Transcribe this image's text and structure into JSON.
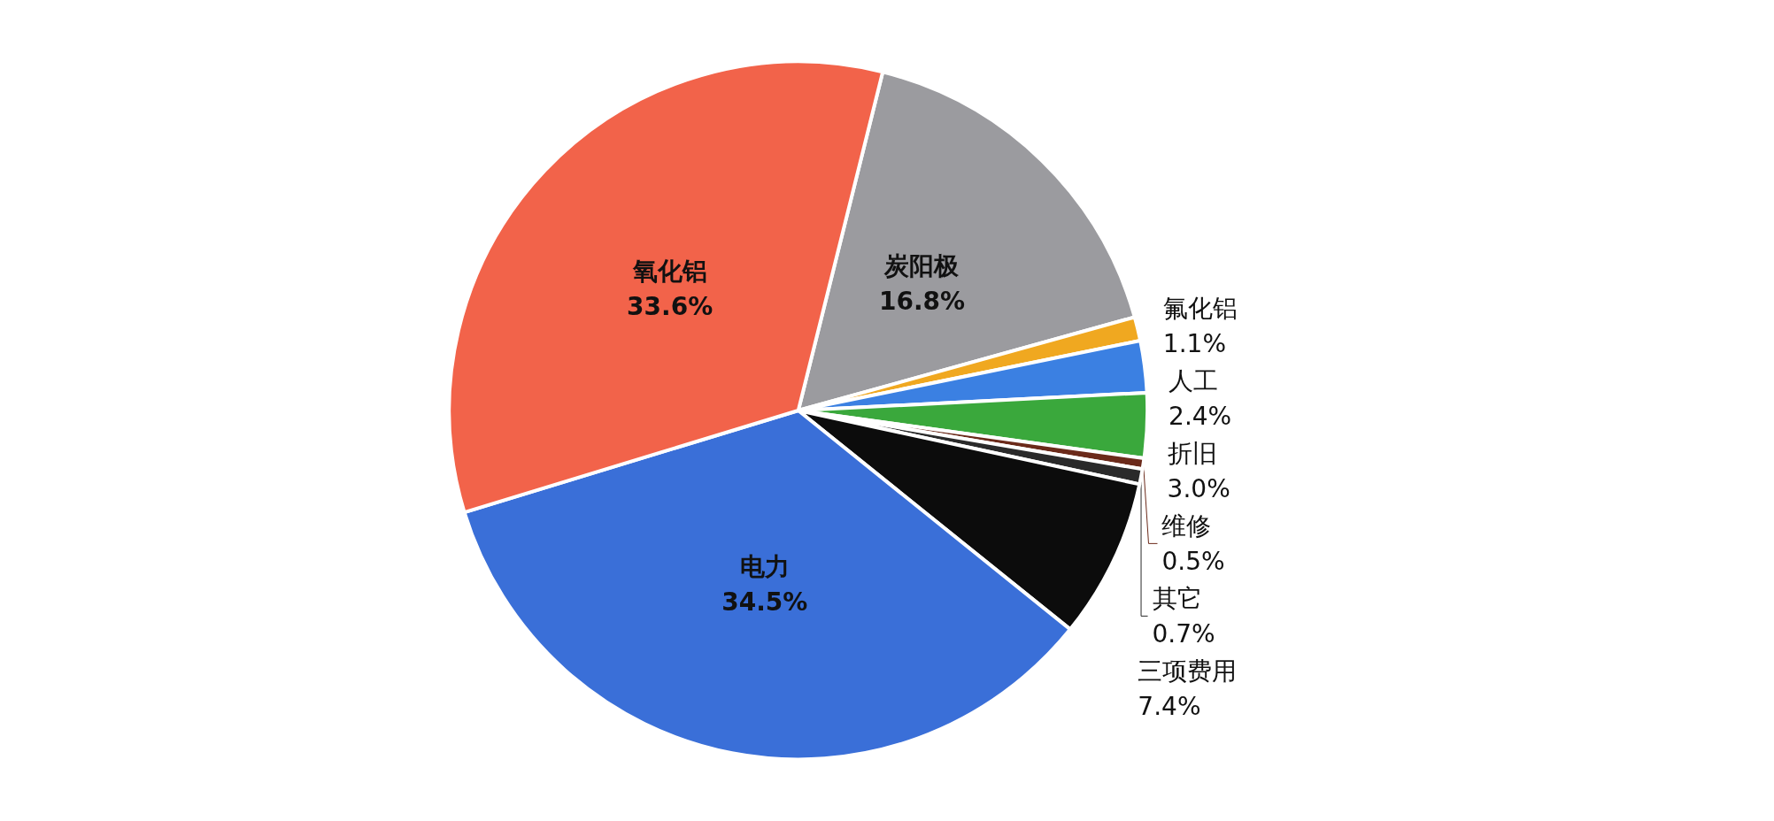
{
  "chart_data": {
    "type": "pie",
    "categories": [
      "炭阳极",
      "氟化铝",
      "人工",
      "折旧",
      "维修",
      "其它",
      "三项费用",
      "电力",
      "氧化铝"
    ],
    "values": [
      16.8,
      1.1,
      2.4,
      3.0,
      0.5,
      0.7,
      7.4,
      34.5,
      33.6
    ],
    "colors": [
      "#9b9b9f",
      "#f0a820",
      "#3b80e2",
      "#3aa83c",
      "#6b2a1a",
      "#2a2a2a",
      "#0c0c0c",
      "#3a6fd8",
      "#f2634a"
    ],
    "value_labels": [
      "16.8%",
      "1.1%",
      "2.4%",
      "3.0%",
      "0.5%",
      "0.7%",
      "7.4%",
      "34.5%",
      "33.6%"
    ],
    "legend": false
  }
}
